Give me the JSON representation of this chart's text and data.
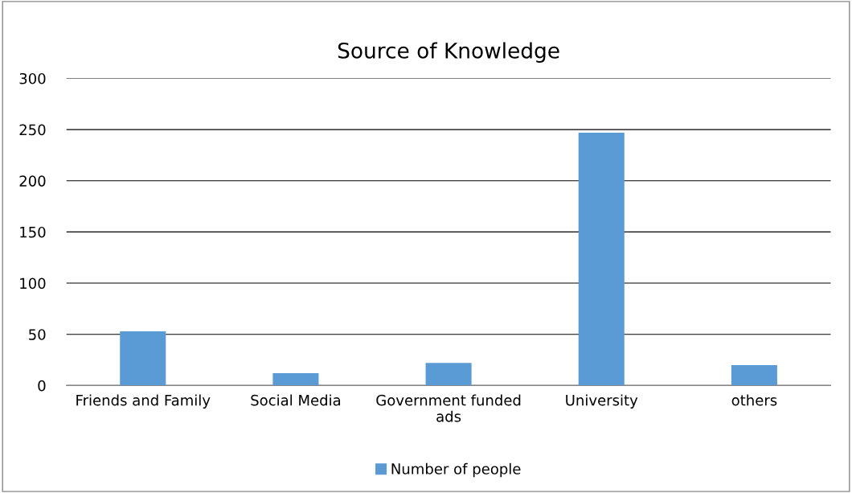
{
  "chart_data": {
    "type": "bar",
    "title": "Source of Knowledge",
    "categories": [
      "Friends and Family",
      "Social Media",
      "Government funded ads",
      "University",
      "others"
    ],
    "series": [
      {
        "name": "Number of people",
        "color": "#5b9bd5",
        "values": [
          53,
          12,
          22,
          247,
          20
        ]
      }
    ],
    "ylim": [
      0,
      300
    ],
    "yticks": [
      0,
      50,
      100,
      150,
      200,
      250,
      300
    ],
    "grid": "y",
    "legend": "bottom"
  }
}
